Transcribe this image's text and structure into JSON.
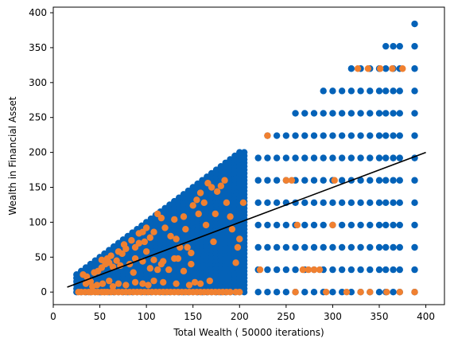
{
  "chart_data": {
    "type": "scatter",
    "title": "",
    "xlabel": "Total Wealth ( 50000 iterations)",
    "ylabel": "Wealth in Financial Asset",
    "xlim": [
      0,
      420
    ],
    "ylim": [
      -18,
      408
    ],
    "xticks": [
      0,
      50,
      100,
      150,
      200,
      250,
      300,
      350,
      400
    ],
    "yticks": [
      0,
      50,
      100,
      150,
      200,
      250,
      300,
      350,
      400
    ],
    "grid": false,
    "legend": "none",
    "colors": {
      "blue": "#0462b8",
      "orange": "#f08030",
      "line": "#000000"
    },
    "series": [
      {
        "style": "scatter",
        "color": "#0462b8",
        "generation": {
          "dense_triangle": {
            "x_start": 25,
            "x_end": 205,
            "x_step": 5,
            "y_step": 5,
            "y_min": 0,
            "y_max_formula": "x"
          },
          "sparse_columns": [
            {
              "x": 220,
              "y": [
                0,
                32,
                64,
                96,
                128,
                160,
                192
              ]
            },
            {
              "x": 230,
              "y": [
                0,
                32,
                64,
                96,
                128,
                160,
                192,
                224
              ]
            },
            {
              "x": 240,
              "y": [
                0,
                32,
                64,
                96,
                128,
                160,
                192,
                224
              ]
            },
            {
              "x": 250,
              "y": [
                0,
                32,
                64,
                96,
                128,
                160,
                192,
                224
              ]
            },
            {
              "x": 260,
              "y": [
                0,
                32,
                64,
                96,
                128,
                160,
                192,
                224,
                256
              ]
            },
            {
              "x": 270,
              "y": [
                0,
                32,
                64,
                96,
                128,
                160,
                192,
                224,
                256
              ]
            },
            {
              "x": 280,
              "y": [
                0,
                32,
                64,
                96,
                128,
                160,
                192,
                224,
                256
              ]
            },
            {
              "x": 290,
              "y": [
                0,
                32,
                64,
                96,
                128,
                160,
                192,
                224,
                256,
                288
              ]
            },
            {
              "x": 300,
              "y": [
                0,
                32,
                64,
                96,
                128,
                160,
                192,
                224,
                256,
                288
              ]
            },
            {
              "x": 310,
              "y": [
                0,
                32,
                64,
                96,
                128,
                160,
                192,
                224,
                256,
                288
              ]
            },
            {
              "x": 320,
              "y": [
                0,
                32,
                64,
                96,
                128,
                160,
                192,
                224,
                256,
                288,
                320
              ]
            },
            {
              "x": 330,
              "y": [
                0,
                32,
                64,
                96,
                128,
                160,
                192,
                224,
                256,
                288,
                320
              ]
            },
            {
              "x": 340,
              "y": [
                0,
                32,
                64,
                96,
                128,
                160,
                192,
                224,
                256,
                288,
                320
              ]
            },
            {
              "x": 350,
              "y": [
                0,
                32,
                64,
                96,
                128,
                160,
                192,
                224,
                256,
                288,
                320
              ]
            },
            {
              "x": 357,
              "y": [
                0,
                32,
                64,
                96,
                128,
                160,
                192,
                224,
                256,
                288,
                320,
                352
              ]
            },
            {
              "x": 365,
              "y": [
                0,
                32,
                64,
                96,
                128,
                160,
                192,
                224,
                256,
                288,
                320,
                352
              ]
            },
            {
              "x": 372,
              "y": [
                0,
                32,
                64,
                96,
                128,
                160,
                192,
                224,
                256,
                288,
                320,
                352
              ]
            },
            {
              "x": 388,
              "y": [
                0,
                32,
                64,
                96,
                128,
                160,
                192,
                224,
                256,
                288,
                320,
                352,
                384
              ]
            }
          ]
        }
      },
      {
        "style": "scatter",
        "color": "#f08030",
        "points": [
          [
            27,
            0
          ],
          [
            30,
            0
          ],
          [
            34,
            0
          ],
          [
            38,
            0
          ],
          [
            41,
            0
          ],
          [
            45,
            0
          ],
          [
            48,
            0
          ],
          [
            52,
            0
          ],
          [
            55,
            0
          ],
          [
            58,
            0
          ],
          [
            62,
            0
          ],
          [
            66,
            0
          ],
          [
            70,
            0
          ],
          [
            74,
            0
          ],
          [
            78,
            0
          ],
          [
            82,
            0
          ],
          [
            86,
            0
          ],
          [
            90,
            0
          ],
          [
            94,
            0
          ],
          [
            98,
            0
          ],
          [
            102,
            0
          ],
          [
            106,
            0
          ],
          [
            110,
            0
          ],
          [
            114,
            0
          ],
          [
            118,
            0
          ],
          [
            122,
            0
          ],
          [
            126,
            0
          ],
          [
            130,
            0
          ],
          [
            134,
            0
          ],
          [
            138,
            0
          ],
          [
            142,
            0
          ],
          [
            146,
            0
          ],
          [
            150,
            0
          ],
          [
            154,
            0
          ],
          [
            158,
            0
          ],
          [
            162,
            0
          ],
          [
            166,
            0
          ],
          [
            170,
            0
          ],
          [
            174,
            0
          ],
          [
            178,
            0
          ],
          [
            182,
            0
          ],
          [
            186,
            0
          ],
          [
            190,
            0
          ],
          [
            196,
            0
          ],
          [
            200,
            0
          ],
          [
            260,
            0
          ],
          [
            293,
            0
          ],
          [
            315,
            0
          ],
          [
            330,
            0
          ],
          [
            340,
            0
          ],
          [
            358,
            0
          ],
          [
            372,
            0
          ],
          [
            388,
            0
          ],
          [
            35,
            12
          ],
          [
            40,
            15
          ],
          [
            42,
            8
          ],
          [
            47,
            10
          ],
          [
            53,
            12
          ],
          [
            60,
            16
          ],
          [
            64,
            8
          ],
          [
            70,
            12
          ],
          [
            78,
            10
          ],
          [
            88,
            14
          ],
          [
            96,
            12
          ],
          [
            102,
            10
          ],
          [
            108,
            16
          ],
          [
            118,
            14
          ],
          [
            132,
            12
          ],
          [
            146,
            10
          ],
          [
            152,
            14
          ],
          [
            158,
            12
          ],
          [
            168,
            16
          ],
          [
            32,
            25
          ],
          [
            36,
            22
          ],
          [
            44,
            28
          ],
          [
            48,
            30
          ],
          [
            52,
            35
          ],
          [
            56,
            40
          ],
          [
            58,
            48
          ],
          [
            62,
            52
          ],
          [
            68,
            45
          ],
          [
            72,
            38
          ],
          [
            74,
            55
          ],
          [
            78,
            62
          ],
          [
            82,
            40
          ],
          [
            86,
            28
          ],
          [
            88,
            48
          ],
          [
            92,
            70
          ],
          [
            96,
            44
          ],
          [
            98,
            72
          ],
          [
            100,
            58
          ],
          [
            104,
            34
          ],
          [
            108,
            46
          ],
          [
            112,
            32
          ],
          [
            116,
            40
          ],
          [
            118,
            44
          ],
          [
            124,
            32
          ],
          [
            130,
            48
          ],
          [
            134,
            48
          ],
          [
            140,
            30
          ],
          [
            148,
            40
          ],
          [
            52,
            46
          ],
          [
            60,
            42
          ],
          [
            64,
            36
          ],
          [
            70,
            58
          ],
          [
            76,
            68
          ],
          [
            84,
            74
          ],
          [
            88,
            64
          ],
          [
            92,
            84
          ],
          [
            96,
            86
          ],
          [
            100,
            92
          ],
          [
            104,
            78
          ],
          [
            108,
            86
          ],
          [
            112,
            112
          ],
          [
            116,
            106
          ],
          [
            120,
            92
          ],
          [
            126,
            80
          ],
          [
            132,
            76
          ],
          [
            136,
            64
          ],
          [
            140,
            108
          ],
          [
            148,
            56
          ],
          [
            154,
            132
          ],
          [
            158,
            142
          ],
          [
            162,
            128
          ],
          [
            166,
            156
          ],
          [
            170,
            150
          ],
          [
            174,
            112
          ],
          [
            176,
            144
          ],
          [
            180,
            152
          ],
          [
            184,
            160
          ],
          [
            186,
            128
          ],
          [
            190,
            108
          ],
          [
            192,
            90
          ],
          [
            196,
            42
          ],
          [
            198,
            64
          ],
          [
            200,
            76
          ],
          [
            204,
            128
          ],
          [
            172,
            72
          ],
          [
            164,
            96
          ],
          [
            156,
            112
          ],
          [
            150,
            124
          ],
          [
            144,
            64
          ],
          [
            130,
            104
          ],
          [
            142,
            90
          ],
          [
            222,
            32
          ],
          [
            230,
            224
          ],
          [
            250,
            160
          ],
          [
            256,
            160
          ],
          [
            262,
            96
          ],
          [
            268,
            32
          ],
          [
            274,
            32
          ],
          [
            280,
            32
          ],
          [
            286,
            32
          ],
          [
            300,
            96
          ],
          [
            302,
            160
          ],
          [
            327,
            320
          ],
          [
            338,
            320
          ],
          [
            351,
            320
          ],
          [
            364,
            320
          ],
          [
            375,
            320
          ]
        ]
      },
      {
        "style": "line",
        "color": "#000000",
        "points": [
          [
            15,
            7
          ],
          [
            400,
            200
          ]
        ]
      }
    ]
  }
}
